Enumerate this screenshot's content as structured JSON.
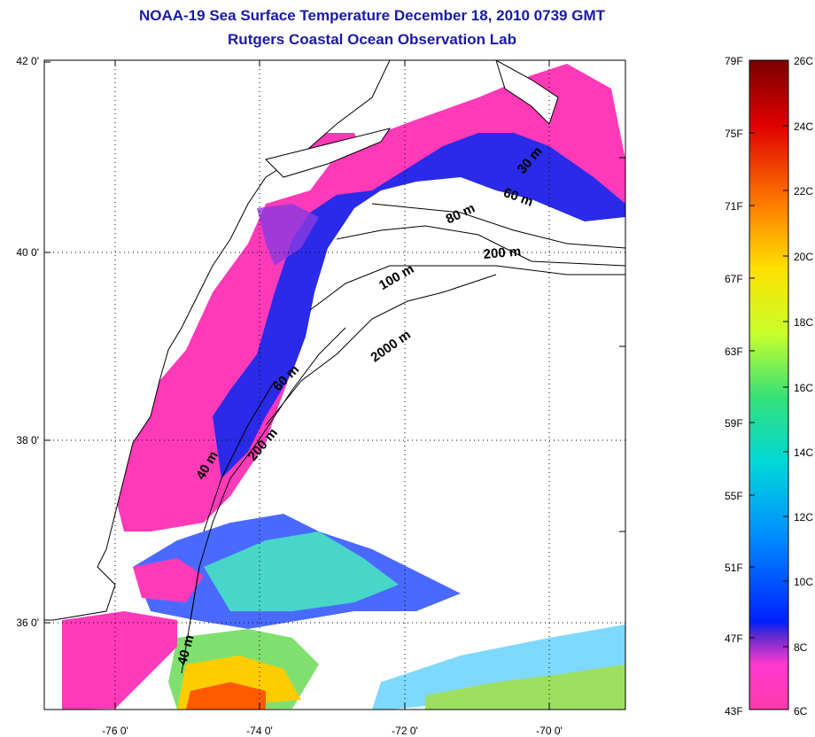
{
  "title": "NOAA-19 Sea Surface Temperature December 18, 2010 0739 GMT",
  "subtitle": "Rutgers Coastal Ocean Observation Lab",
  "map": {
    "lon_ticks": [
      "-76 0'",
      "-74 0'",
      "-72 0'",
      "-70 0'"
    ],
    "lat_ticks": [
      "42 0'",
      "40 0'",
      "38 0'",
      "36 0'"
    ],
    "isobath_labels": [
      "30 m",
      "60 m",
      "80 m",
      "200 m",
      "100 m",
      "2000 m",
      "60 m",
      "200 m",
      "40 m",
      "40 m"
    ]
  },
  "colorbar": {
    "fahrenheit": [
      "79F",
      "75F",
      "71F",
      "67F",
      "63F",
      "59F",
      "55F",
      "51F",
      "47F",
      "43F"
    ],
    "celsius": [
      "26C",
      "24C",
      "22C",
      "20C",
      "18C",
      "16C",
      "14C",
      "12C",
      "10C",
      "8C",
      "6C"
    ],
    "colors": [
      "#7a0000",
      "#e00000",
      "#ff7a00",
      "#ffe000",
      "#c8ff2a",
      "#35e078",
      "#00d8d8",
      "#0090ff",
      "#0020ff",
      "#5a2ad0",
      "#ff38d0",
      "#ff3aa8"
    ]
  }
}
